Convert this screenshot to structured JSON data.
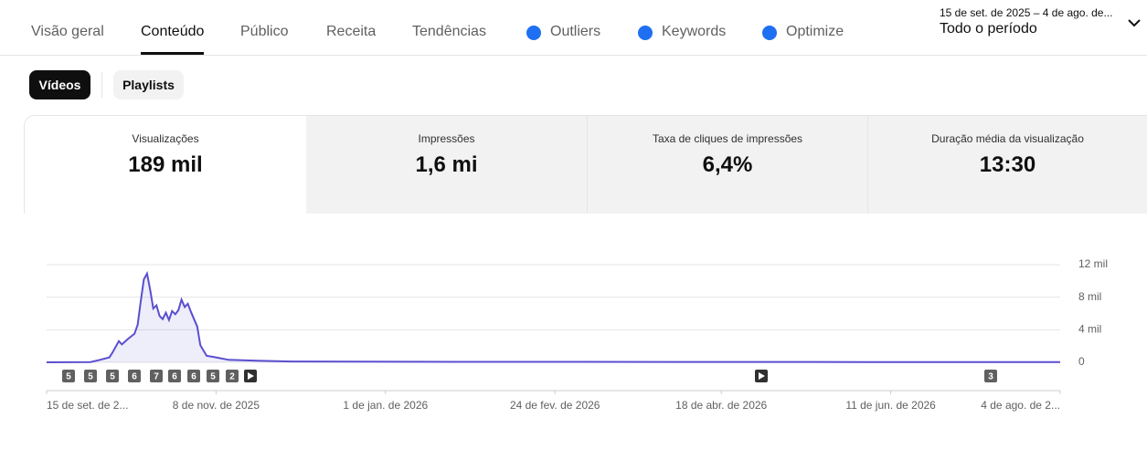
{
  "tabs": [
    "Visão geral",
    "Conteúdo",
    "Público",
    "Receita",
    "Tendências",
    "Outliers",
    "Keywords",
    "Optimize"
  ],
  "date_range": {
    "range": "15 de set. de 2025 – 4 de ago. de...",
    "period": "Todo o período"
  },
  "toggles": [
    "Vídeos",
    "Playlists"
  ],
  "metrics": [
    {
      "label": "Visualizações",
      "value": "189 mil"
    },
    {
      "label": "Impressões",
      "value": "1,6 mi"
    },
    {
      "label": "Taxa de cliques de impressões",
      "value": "6,4%"
    },
    {
      "label": "Duração média da visualização",
      "value": "13:30"
    }
  ],
  "chart_data": {
    "type": "line",
    "x": [
      "2025-09-15",
      "2025-09-29",
      "2025-10-02",
      "2025-10-05",
      "2025-10-06",
      "2025-10-08",
      "2025-10-09",
      "2025-10-11",
      "2025-10-13",
      "2025-10-14",
      "2025-10-15",
      "2025-10-16",
      "2025-10-17",
      "2025-10-18",
      "2025-10-19",
      "2025-10-20",
      "2025-10-21",
      "2025-10-22",
      "2025-10-23",
      "2025-10-24",
      "2025-10-25",
      "2025-10-26",
      "2025-10-27",
      "2025-10-28",
      "2025-10-29",
      "2025-10-30",
      "2025-10-31",
      "2025-11-02",
      "2025-11-03",
      "2025-11-05",
      "2025-11-08",
      "2025-11-12",
      "2025-11-21",
      "2025-12-02",
      "2026-01-23",
      "2026-04-03",
      "2026-06-02",
      "2026-08-04"
    ],
    "series": [
      {
        "color": "#5a4fcf",
        "values": [
          0,
          30,
          300,
          600,
          1200,
          2600,
          2200,
          2900,
          3500,
          4600,
          7500,
          10200,
          10900,
          8900,
          6600,
          7000,
          5700,
          5300,
          6100,
          5200,
          6300,
          5900,
          6400,
          7700,
          6800,
          7200,
          6200,
          4400,
          2100,
          800,
          600,
          300,
          200,
          100,
          60,
          50,
          30,
          20
        ]
      }
    ],
    "xlim": [
      "2025-09-15",
      "2026-08-04"
    ],
    "xticks": [
      {
        "value": "2025-09-15",
        "label": "15 de set. de 2..."
      },
      {
        "value": "2025-11-08",
        "label": "8 de nov. de 2025"
      },
      {
        "value": "2026-01-01",
        "label": "1 de jan. de 2026"
      },
      {
        "value": "2026-02-24",
        "label": "24 de fev. de 2026"
      },
      {
        "value": "2026-04-18",
        "label": "18 de abr. de 2026"
      },
      {
        "value": "2026-06-11",
        "label": "11 de jun. de 2026"
      },
      {
        "value": "2026-08-04",
        "label": "4 de ago. de 2..."
      }
    ],
    "ylim": [
      0,
      12000
    ],
    "yticks": [
      {
        "value": 0,
        "label": "0"
      },
      {
        "value": 4000,
        "label": "4 mil"
      },
      {
        "value": 8000,
        "label": "8 mil"
      },
      {
        "value": 12000,
        "label": "12 mil"
      }
    ],
    "grid": true,
    "markers": [
      "5",
      "5",
      "5",
      "6",
      "7",
      "6",
      "6",
      "5",
      "2",
      "3"
    ]
  }
}
